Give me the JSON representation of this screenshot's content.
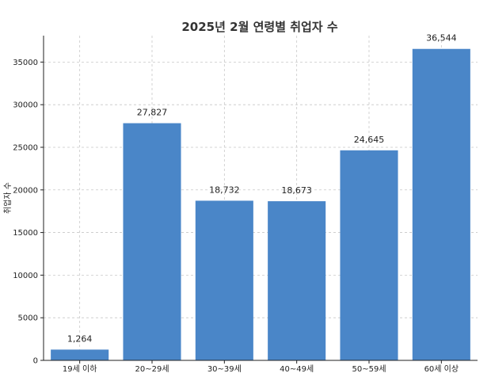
{
  "chart_data": {
    "type": "bar",
    "title": "2025년 2월 연령별 취업자 수",
    "xlabel": "",
    "ylabel": "취업자 수",
    "categories": [
      "19세 이하",
      "20~29세",
      "30~39세",
      "40~49세",
      "50~59세",
      "60세 이상"
    ],
    "values": [
      1264,
      27827,
      18732,
      18673,
      24645,
      36544
    ],
    "data_labels": [
      "1,264",
      "27,827",
      "18,732",
      "18,673",
      "24,645",
      "36,544"
    ],
    "yticks": [
      "0",
      "5000",
      "10000",
      "15000",
      "20000",
      "25000",
      "30000",
      "35000"
    ],
    "ylim": [
      0,
      38100
    ],
    "grid": true,
    "bar_color": "#4a86c8"
  }
}
